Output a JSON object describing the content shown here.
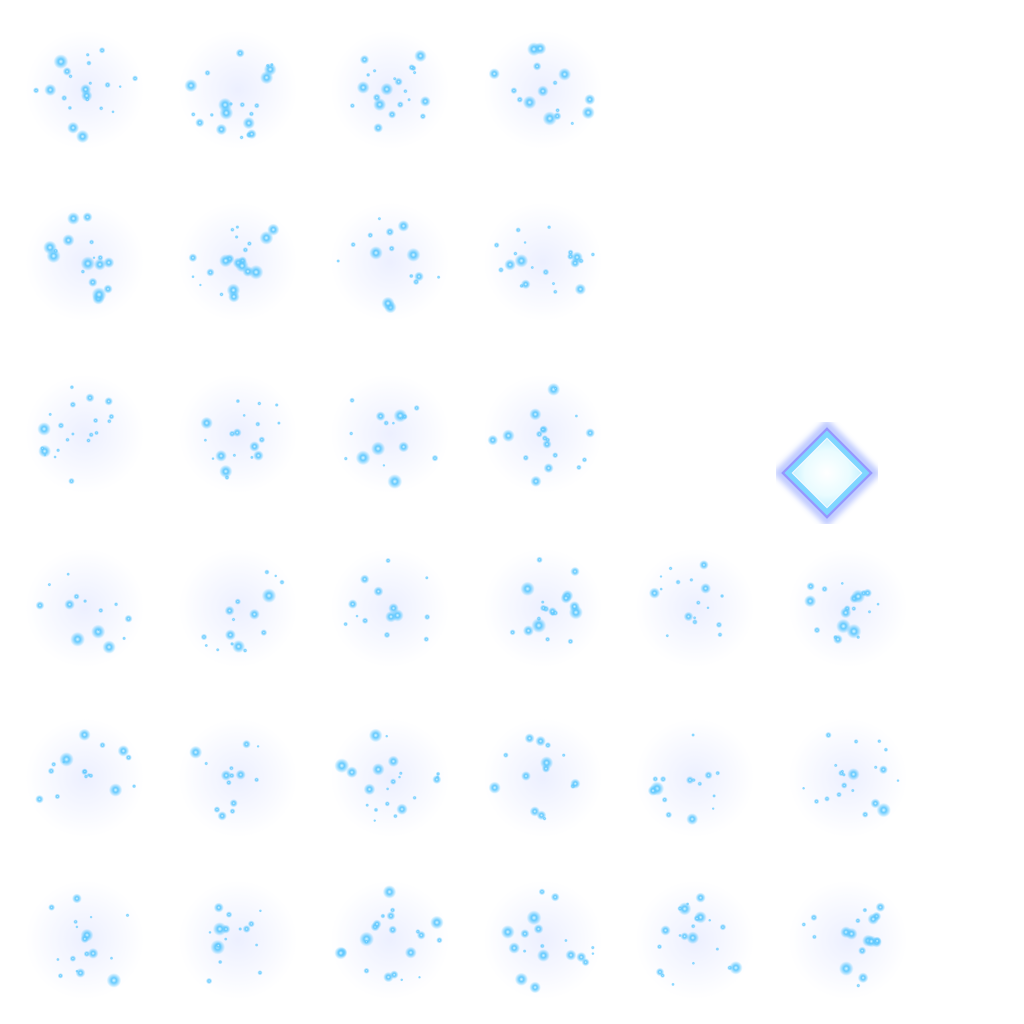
{
  "sheet": {
    "kind": "particle-sprite-sheet",
    "background": "#ffffff",
    "particle_color": "#5ec8ff",
    "particle_core_color": "#dff8ff",
    "glow_color": "#8fa6ff",
    "frame_count": 32
  },
  "crystal": {
    "icon": "diamond-crystal-icon",
    "fill_color": "#e9fbff",
    "edge_color": "#7d8cff",
    "glow_color": "#b9d4ff"
  }
}
